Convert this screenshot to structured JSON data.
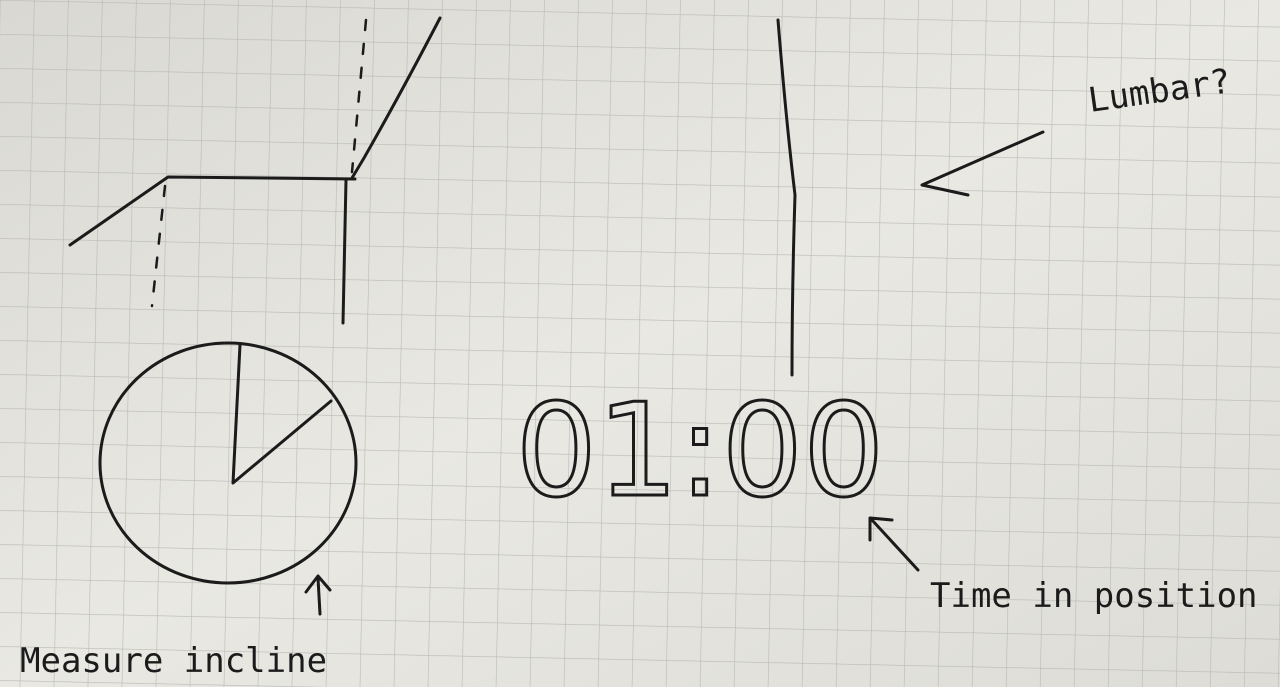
{
  "timer": "01:00",
  "annotations": {
    "lumbar": "Lumbar?",
    "time_in_position": "Time in position",
    "measure_incline": "Measure incline"
  }
}
